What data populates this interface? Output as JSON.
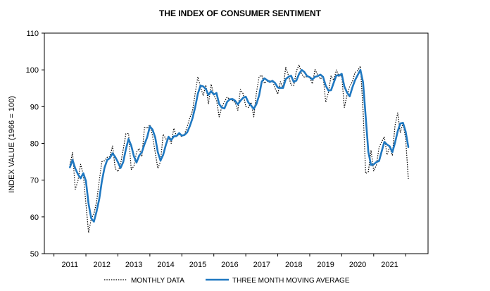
{
  "chart_data": {
    "type": "line",
    "title": "THE INDEX OF CONSUMER SENTIMENT",
    "xlabel": "",
    "ylabel": "INDEX VALUE (1966 = 100)",
    "xlim": [
      2010.2,
      2022.2
    ],
    "ylim": [
      50,
      110
    ],
    "yticks": [
      50,
      60,
      70,
      80,
      90,
      100,
      110
    ],
    "xticks": [
      "2011",
      "2012",
      "2013",
      "2014",
      "2015",
      "2016",
      "2017",
      "2018",
      "2019",
      "2020",
      "2021"
    ],
    "grid": false,
    "legend_position": "bottom",
    "series": [
      {
        "name": "MONTHLY DATA",
        "style": "dotted",
        "color": "#000000",
        "x": [
          2011.0,
          2011.083,
          2011.167,
          2011.25,
          2011.333,
          2011.417,
          2011.5,
          2011.583,
          2011.667,
          2011.75,
          2011.833,
          2011.917,
          2012.0,
          2012.083,
          2012.167,
          2012.25,
          2012.333,
          2012.417,
          2012.5,
          2012.583,
          2012.667,
          2012.75,
          2012.833,
          2012.917,
          2013.0,
          2013.083,
          2013.167,
          2013.25,
          2013.333,
          2013.417,
          2013.5,
          2013.583,
          2013.667,
          2013.75,
          2013.833,
          2013.917,
          2014.0,
          2014.083,
          2014.167,
          2014.25,
          2014.333,
          2014.417,
          2014.5,
          2014.583,
          2014.667,
          2014.75,
          2014.833,
          2014.917,
          2015.0,
          2015.083,
          2015.167,
          2015.25,
          2015.333,
          2015.417,
          2015.5,
          2015.583,
          2015.667,
          2015.75,
          2015.833,
          2015.917,
          2016.0,
          2016.083,
          2016.167,
          2016.25,
          2016.333,
          2016.417,
          2016.5,
          2016.583,
          2016.667,
          2016.75,
          2016.833,
          2016.917,
          2017.0,
          2017.083,
          2017.167,
          2017.25,
          2017.333,
          2017.417,
          2017.5,
          2017.583,
          2017.667,
          2017.75,
          2017.833,
          2017.917,
          2018.0,
          2018.083,
          2018.167,
          2018.25,
          2018.333,
          2018.417,
          2018.5,
          2018.583,
          2018.667,
          2018.75,
          2018.833,
          2018.917,
          2019.0,
          2019.083,
          2019.167,
          2019.25,
          2019.333,
          2019.417,
          2019.5,
          2019.583,
          2019.667,
          2019.75,
          2019.833,
          2019.917,
          2020.0,
          2020.083,
          2020.167,
          2020.25,
          2020.333,
          2020.417,
          2020.5,
          2020.583,
          2020.667,
          2020.75,
          2020.833,
          2020.917,
          2021.0,
          2021.083,
          2021.167,
          2021.25,
          2021.333,
          2021.417,
          2021.5,
          2021.583
        ],
        "y": [
          74.2,
          77.5,
          67.5,
          69.8,
          74.3,
          71.5,
          63.7,
          55.7,
          59.5,
          60.8,
          64.1,
          69.9,
          75.0,
          75.3,
          76.2,
          76.4,
          79.3,
          73.2,
          72.3,
          74.3,
          78.3,
          82.6,
          82.7,
          72.9,
          73.8,
          77.6,
          78.6,
          76.4,
          84.5,
          84.1,
          85.1,
          82.1,
          77.5,
          73.2,
          75.1,
          82.5,
          81.2,
          81.6,
          80.0,
          84.1,
          81.9,
          82.5,
          81.8,
          82.5,
          84.6,
          86.9,
          88.8,
          93.6,
          98.1,
          95.4,
          93.0,
          95.9,
          90.7,
          96.1,
          93.1,
          91.9,
          87.2,
          90.0,
          91.3,
          92.6,
          92.0,
          91.7,
          91.0,
          89.0,
          94.7,
          93.5,
          90.0,
          89.8,
          91.2,
          87.2,
          93.8,
          98.2,
          98.5,
          96.3,
          96.9,
          97.0,
          97.1,
          95.0,
          93.4,
          96.8,
          95.1,
          100.7,
          98.5,
          95.9,
          95.7,
          99.7,
          101.4,
          98.8,
          98.0,
          98.2,
          97.9,
          96.2,
          100.1,
          98.6,
          97.5,
          98.3,
          91.2,
          93.8,
          98.4,
          97.2,
          100.0,
          98.2,
          98.4,
          89.8,
          93.2,
          95.5,
          96.8,
          99.3,
          99.8,
          101.0,
          89.1,
          71.8,
          72.3,
          78.1,
          72.5,
          74.1,
          78.9,
          80.4,
          81.8,
          76.9,
          79.0,
          76.8,
          84.9,
          88.3,
          82.9,
          85.5,
          81.2,
          70.3
        ]
      },
      {
        "name": "THREE MONTH MOVING AVERAGE",
        "style": "solid",
        "color": "#1f78c1",
        "x": [
          2011.0,
          2011.083,
          2011.167,
          2011.25,
          2011.333,
          2011.417,
          2011.5,
          2011.583,
          2011.667,
          2011.75,
          2011.833,
          2011.917,
          2012.0,
          2012.083,
          2012.167,
          2012.25,
          2012.333,
          2012.417,
          2012.5,
          2012.583,
          2012.667,
          2012.75,
          2012.833,
          2012.917,
          2013.0,
          2013.083,
          2013.167,
          2013.25,
          2013.333,
          2013.417,
          2013.5,
          2013.583,
          2013.667,
          2013.75,
          2013.833,
          2013.917,
          2014.0,
          2014.083,
          2014.167,
          2014.25,
          2014.333,
          2014.417,
          2014.5,
          2014.583,
          2014.667,
          2014.75,
          2014.833,
          2014.917,
          2015.0,
          2015.083,
          2015.167,
          2015.25,
          2015.333,
          2015.417,
          2015.5,
          2015.583,
          2015.667,
          2015.75,
          2015.833,
          2015.917,
          2016.0,
          2016.083,
          2016.167,
          2016.25,
          2016.333,
          2016.417,
          2016.5,
          2016.583,
          2016.667,
          2016.75,
          2016.833,
          2016.917,
          2017.0,
          2017.083,
          2017.167,
          2017.25,
          2017.333,
          2017.417,
          2017.5,
          2017.583,
          2017.667,
          2017.75,
          2017.833,
          2017.917,
          2018.0,
          2018.083,
          2018.167,
          2018.25,
          2018.333,
          2018.417,
          2018.5,
          2018.583,
          2018.667,
          2018.75,
          2018.833,
          2018.917,
          2019.0,
          2019.083,
          2019.167,
          2019.25,
          2019.333,
          2019.417,
          2019.5,
          2019.583,
          2019.667,
          2019.75,
          2019.833,
          2019.917,
          2020.0,
          2020.083,
          2020.167,
          2020.25,
          2020.333,
          2020.417,
          2020.5,
          2020.583,
          2020.667,
          2020.75,
          2020.833,
          2020.917,
          2021.0,
          2021.083,
          2021.167,
          2021.25,
          2021.333,
          2021.417,
          2021.5,
          2021.583
        ],
        "y": [
          73.5,
          75.5,
          73.2,
          71.6,
          70.5,
          71.9,
          69.8,
          63.6,
          59.6,
          58.7,
          61.5,
          64.9,
          69.7,
          73.4,
          75.5,
          76.0,
          77.3,
          76.3,
          74.9,
          73.3,
          74.9,
          78.4,
          81.2,
          79.4,
          76.5,
          74.8,
          76.7,
          77.6,
          79.8,
          81.7,
          84.6,
          83.8,
          81.6,
          77.6,
          75.3,
          76.9,
          79.6,
          81.8,
          80.9,
          81.9,
          82.0,
          82.8,
          82.1,
          82.3,
          83.0,
          84.7,
          86.8,
          89.8,
          93.5,
          95.7,
          95.5,
          94.8,
          93.2,
          94.2,
          93.3,
          93.7,
          90.7,
          89.7,
          89.5,
          91.3,
          92.0,
          92.1,
          91.6,
          90.6,
          91.6,
          92.4,
          92.7,
          91.1,
          90.3,
          89.4,
          90.7,
          93.1,
          96.8,
          97.7,
          97.2,
          96.7,
          97.0,
          96.4,
          95.2,
          95.1,
          95.1,
          97.5,
          98.1,
          98.4,
          96.7,
          97.1,
          98.9,
          100.0,
          99.4,
          98.3,
          98.0,
          97.4,
          98.1,
          98.3,
          98.7,
          98.1,
          95.7,
          94.4,
          94.5,
          96.5,
          98.5,
          98.5,
          98.9,
          95.5,
          93.8,
          92.8,
          95.2,
          97.2,
          98.6,
          100.0,
          96.6,
          87.3,
          77.7,
          74.1,
          74.3,
          74.9,
          75.2,
          77.8,
          80.4,
          79.7,
          79.2,
          77.6,
          80.2,
          83.3,
          85.4,
          85.6,
          83.2,
          79.0
        ]
      }
    ]
  }
}
